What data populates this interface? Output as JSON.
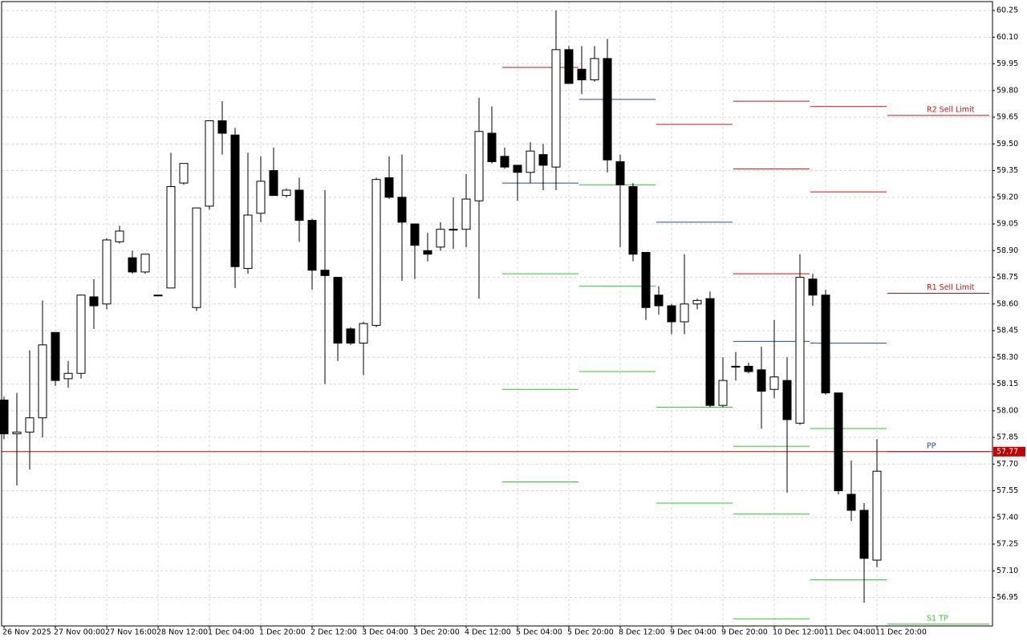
{
  "chart_data": {
    "type": "candlestick",
    "categories": [
      "26 Nov 2025",
      null,
      null,
      null,
      "27 Nov 00:00",
      null,
      null,
      null,
      "27 Nov 16:00",
      null,
      null,
      null,
      "28 Nov 12:00",
      null,
      null,
      null,
      "1 Dec 04:00",
      null,
      null,
      null,
      "1 Dec 20:00",
      null,
      null,
      null,
      "2 Dec 12:00",
      null,
      null,
      null,
      "3 Dec 04:00",
      null,
      null,
      null,
      "3 Dec 20:00",
      null,
      null,
      null,
      "4 Dec 12:00",
      null,
      null,
      null,
      "5 Dec 04:00",
      null,
      null,
      null,
      "5 Dec 20:00",
      null,
      null,
      null,
      "8 Dec 12:00",
      null,
      null,
      null,
      "9 Dec 04:00",
      null,
      null,
      null,
      "9 Dec 20:00",
      null,
      null,
      null,
      "10 Dec 12:00",
      null,
      null,
      null,
      "11 Dec 04:00",
      null,
      null,
      null,
      "11 Dec 20:00"
    ],
    "open": [
      58.06,
      57.87,
      57.88,
      57.96,
      58.44,
      58.18,
      58.21,
      58.64,
      58.6,
      58.95,
      58.86,
      58.78,
      58.65,
      58.69,
      59.28,
      58.58,
      59.15,
      59.63,
      59.55,
      58.8,
      59.11,
      59.35,
      59.21,
      59.24,
      59.07,
      58.79,
      58.75,
      58.46,
      58.38,
      58.48,
      59.31,
      59.2,
      59.05,
      58.9,
      58.92,
      59.02,
      59.02,
      59.18,
      59.56,
      59.43,
      59.38,
      59.34,
      59.44,
      59.37,
      60.03,
      59.92,
      59.86,
      59.98,
      59.4,
      59.26,
      58.89,
      58.65,
      58.59,
      58.5,
      58.6,
      58.63,
      58.03,
      58.25,
      58.25,
      58.23,
      58.12,
      58.17,
      57.93,
      58.74,
      58.65,
      58.1,
      57.53,
      57.44,
      57.16
    ],
    "high": [
      58.08,
      58.1,
      58.34,
      58.62,
      58.44,
      58.28,
      58.65,
      58.74,
      58.97,
      59.04,
      58.9,
      58.88,
      58.65,
      59.45,
      59.39,
      59.14,
      59.63,
      59.74,
      59.59,
      59.45,
      59.43,
      59.48,
      59.25,
      59.31,
      59.08,
      59.24,
      58.75,
      58.47,
      58.5,
      59.31,
      59.43,
      59.44,
      59.05,
      59.0,
      59.06,
      59.2,
      59.33,
      59.76,
      59.71,
      59.48,
      59.38,
      59.51,
      59.5,
      60.25,
      60.05,
      60.05,
      60.05,
      60.09,
      59.44,
      59.28,
      58.89,
      58.7,
      58.6,
      58.88,
      58.63,
      58.67,
      58.3,
      58.33,
      58.27,
      58.36,
      58.51,
      58.3,
      58.88,
      58.77,
      58.68,
      58.1,
      57.72,
      57.48,
      57.84
    ],
    "low": [
      57.84,
      57.58,
      57.67,
      57.85,
      58.14,
      58.13,
      58.18,
      58.46,
      58.57,
      58.94,
      58.77,
      58.77,
      58.65,
      58.69,
      59.27,
      58.56,
      59.13,
      59.44,
      58.69,
      58.77,
      59.06,
      59.21,
      59.2,
      58.95,
      58.68,
      58.15,
      58.28,
      58.37,
      58.2,
      58.47,
      59.19,
      58.73,
      58.74,
      58.84,
      58.9,
      58.91,
      58.92,
      58.63,
      59.39,
      59.36,
      59.18,
      59.28,
      59.24,
      59.24,
      59.84,
      59.78,
      59.85,
      59.34,
      58.92,
      58.84,
      58.51,
      58.54,
      58.43,
      58.43,
      58.57,
      58.02,
      58.02,
      58.17,
      58.21,
      57.9,
      58.07,
      57.54,
      57.92,
      58.59,
      58.09,
      57.53,
      57.38,
      56.92,
      57.12
    ],
    "close": [
      57.87,
      57.88,
      57.96,
      58.37,
      58.17,
      58.21,
      58.65,
      58.59,
      58.96,
      59.01,
      58.78,
      58.88,
      58.65,
      59.26,
      59.39,
      59.14,
      59.63,
      59.56,
      58.81,
      59.1,
      59.29,
      59.21,
      59.24,
      59.07,
      58.79,
      58.76,
      58.38,
      58.38,
      58.49,
      59.3,
      59.2,
      59.06,
      58.93,
      58.88,
      59.02,
      59.02,
      59.19,
      59.57,
      59.4,
      59.37,
      59.34,
      59.46,
      59.38,
      60.03,
      59.84,
      59.86,
      59.98,
      59.41,
      59.27,
      58.88,
      58.58,
      58.59,
      58.5,
      58.6,
      58.62,
      58.03,
      58.17,
      58.25,
      58.22,
      58.11,
      58.19,
      57.95,
      58.75,
      58.65,
      58.1,
      57.55,
      57.44,
      57.17,
      57.66
    ],
    "ylim": [
      56.79,
      60.3
    ],
    "yticks": [
      56.95,
      {
        "value": 57.1,
        "label": "57.10"
      },
      57.25,
      {
        "value": 57.4,
        "label": "57.40"
      },
      57.55,
      {
        "value": 57.7,
        "label": "57.70"
      },
      57.85,
      {
        "value": 58,
        "label": "58.00"
      },
      58.15,
      {
        "value": 58.3,
        "label": "58.30"
      },
      58.45,
      {
        "value": 58.6,
        "label": "58.60"
      },
      58.75,
      {
        "value": 58.9,
        "label": "58.90"
      },
      59.05,
      {
        "value": 59.2,
        "label": "59.20"
      },
      59.35,
      {
        "value": 59.5,
        "label": "59.50"
      },
      59.65,
      {
        "value": 59.8,
        "label": "59.80"
      },
      59.95,
      {
        "value": 60.1,
        "label": "60.10"
      },
      60.25
    ],
    "grid": true,
    "last_price": 57.77,
    "last_price_color": "#c00000",
    "pivot_days": [
      [
        {
          "value": 59.93,
          "color": "#d01010"
        },
        {
          "value": 59.28,
          "color": "#1f4e9c"
        },
        {
          "value": 58.77,
          "color": "#33c433"
        },
        {
          "value": 58.12,
          "color": "#33c433"
        },
        {
          "value": 57.6,
          "color": "#33c433"
        }
      ],
      [
        {
          "value": 59.75,
          "color": "#1f4e9c"
        },
        {
          "value": 59.27,
          "color": "#33c433"
        },
        {
          "value": 58.7,
          "color": "#33c433"
        },
        {
          "value": 58.22,
          "color": "#33c433"
        }
      ],
      [
        {
          "value": 59.61,
          "color": "#d01010"
        },
        {
          "value": 59.06,
          "color": "#1f4e9c"
        },
        {
          "value": 58.02,
          "color": "#33c433"
        },
        {
          "value": 57.48,
          "color": "#33c433"
        }
      ],
      [
        {
          "value": 59.74,
          "color": "#d01010"
        },
        {
          "value": 59.36,
          "color": "#d01010"
        },
        {
          "value": 58.77,
          "color": "#d01010"
        },
        {
          "value": 58.39,
          "color": "#1f4e9c"
        },
        {
          "value": 57.8,
          "color": "#33c433"
        },
        {
          "value": 57.42,
          "color": "#33c433"
        },
        {
          "value": 56.83,
          "color": "#33c433"
        }
      ],
      [
        {
          "value": 59.71,
          "color": "#d01010"
        },
        {
          "value": 59.23,
          "color": "#d01010"
        },
        {
          "value": 58.38,
          "color": "#1f4e9c"
        },
        {
          "value": 57.9,
          "color": "#33c433"
        },
        {
          "value": 57.05,
          "color": "#33c433"
        }
      ],
      [
        {
          "value": 59.66,
          "color": "#d01010",
          "label": "R2 Sell Limit"
        },
        {
          "value": 58.66,
          "color": "#d01010",
          "label": "R1 Sell Limit"
        },
        {
          "value": 57.77,
          "color": "#1f4e9c",
          "label": "PP"
        },
        {
          "value": 56.8,
          "color": "#33c433",
          "label": "S1 TP"
        }
      ]
    ]
  }
}
